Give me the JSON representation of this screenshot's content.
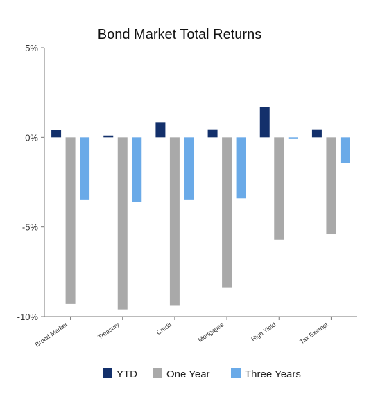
{
  "chart_data": {
    "type": "bar",
    "title": "Bond Market Total Returns",
    "xlabel": "",
    "ylabel": "",
    "categories": [
      "Broad Market",
      "Treasury",
      "Credit",
      "Mortgages",
      "High Yield",
      "Tax Exempt"
    ],
    "series": [
      {
        "name": "YTD",
        "color": "#13306b",
        "values": [
          0.4,
          0.1,
          0.85,
          0.45,
          1.7,
          0.45
        ]
      },
      {
        "name": "One Year",
        "color": "#a9a9a9",
        "values": [
          -9.3,
          -9.6,
          -9.4,
          -8.4,
          -5.7,
          -5.4
        ]
      },
      {
        "name": "Three Years",
        "color": "#6aaae8",
        "values": [
          -3.5,
          -3.6,
          -3.5,
          -3.4,
          -0.05,
          -1.45
        ]
      }
    ],
    "ylim": [
      -10,
      5
    ],
    "yticks": [
      5,
      0,
      -5,
      -10
    ],
    "ytick_labels": [
      "5%",
      "0%",
      "-5%",
      "-10%"
    ],
    "grid": false,
    "legend_position": "bottom"
  }
}
